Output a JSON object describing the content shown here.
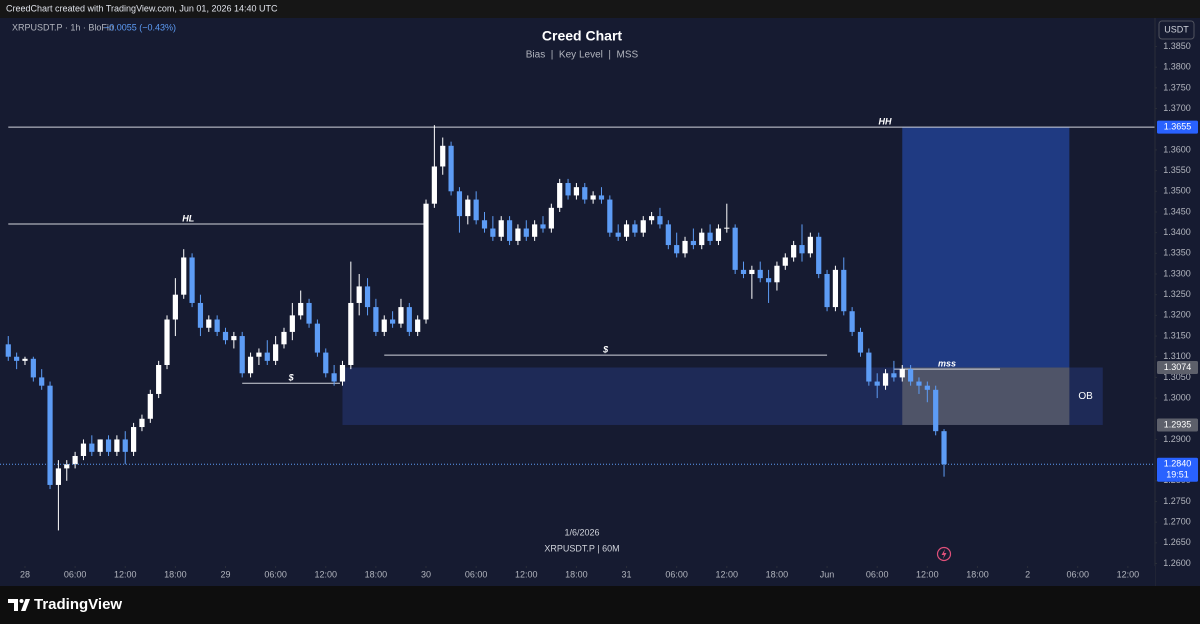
{
  "header": {
    "text": "CreedChart created with TradingView.com, Jun 01, 2026 14:40 UTC"
  },
  "brand": {
    "name": "TradingView"
  },
  "chart_data": {
    "type": "candlestick",
    "title": "Creed Chart",
    "subtitle": "Bias  |  Key Level  |  MSS",
    "symbol": "XRPUSDT.P · 1h · BloFin",
    "change": "−0.0055 (−0.43%)",
    "currency": "USDT",
    "footer_date": "1/6/2026",
    "footer_symbol": "XRPUSDT.P | 60M",
    "countdown": "19:51",
    "up_color": "#ffffff",
    "down_color": "#5d9cf5",
    "xlim": [
      -2.99,
      135.25
    ],
    "ylim": [
      1.2594,
      1.3919
    ],
    "xticks": [
      {
        "value": 0,
        "label": "28"
      },
      {
        "value": 6,
        "label": "06:00"
      },
      {
        "value": 12,
        "label": "12:00"
      },
      {
        "value": 18,
        "label": "18:00"
      },
      {
        "value": 24,
        "label": "29"
      },
      {
        "value": 30,
        "label": "06:00"
      },
      {
        "value": 36,
        "label": "12:00"
      },
      {
        "value": 42,
        "label": "18:00"
      },
      {
        "value": 48,
        "label": "30"
      },
      {
        "value": 54,
        "label": "06:00"
      },
      {
        "value": 60,
        "label": "12:00"
      },
      {
        "value": 66,
        "label": "18:00"
      },
      {
        "value": 72,
        "label": "31"
      },
      {
        "value": 78,
        "label": "06:00"
      },
      {
        "value": 84,
        "label": "12:00"
      },
      {
        "value": 90,
        "label": "18:00"
      },
      {
        "value": 96,
        "label": "Jun"
      },
      {
        "value": 102,
        "label": "06:00"
      },
      {
        "value": 108,
        "label": "12:00"
      },
      {
        "value": 114,
        "label": "18:00"
      },
      {
        "value": 120,
        "label": "2"
      },
      {
        "value": 126,
        "label": "06:00"
      },
      {
        "value": 132,
        "label": "12:00"
      }
    ],
    "yticks": [
      {
        "value": 1.26,
        "label": "1.2600"
      },
      {
        "value": 1.265,
        "label": "1.2650"
      },
      {
        "value": 1.27,
        "label": "1.2700"
      },
      {
        "value": 1.275,
        "label": "1.2750"
      },
      {
        "value": 1.28,
        "label": "1.2800"
      },
      {
        "value": 1.29,
        "label": "1.2900"
      },
      {
        "value": 1.3,
        "label": "1.3000"
      },
      {
        "value": 1.305,
        "label": "1.3050"
      },
      {
        "value": 1.31,
        "label": "1.3100"
      },
      {
        "value": 1.315,
        "label": "1.3150"
      },
      {
        "value": 1.32,
        "label": "1.3200"
      },
      {
        "value": 1.325,
        "label": "1.3250"
      },
      {
        "value": 1.33,
        "label": "1.3300"
      },
      {
        "value": 1.335,
        "label": "1.3350"
      },
      {
        "value": 1.34,
        "label": "1.3400"
      },
      {
        "value": 1.345,
        "label": "1.3450"
      },
      {
        "value": 1.35,
        "label": "1.3500"
      },
      {
        "value": 1.355,
        "label": "1.3550"
      },
      {
        "value": 1.36,
        "label": "1.3600"
      },
      {
        "value": 1.37,
        "label": "1.3700"
      },
      {
        "value": 1.375,
        "label": "1.3750"
      },
      {
        "value": 1.38,
        "label": "1.3800"
      },
      {
        "value": 1.385,
        "label": "1.3850"
      }
    ],
    "x": [
      -2,
      -1,
      0,
      1,
      2,
      3,
      4,
      5,
      6,
      7,
      8,
      9,
      10,
      11,
      12,
      13,
      14,
      15,
      16,
      17,
      18,
      19,
      20,
      21,
      22,
      23,
      24,
      25,
      26,
      27,
      28,
      29,
      30,
      31,
      32,
      33,
      34,
      35,
      36,
      37,
      38,
      39,
      40,
      41,
      42,
      43,
      44,
      45,
      46,
      47,
      48,
      49,
      50,
      51,
      52,
      53,
      54,
      55,
      56,
      57,
      58,
      59,
      60,
      61,
      62,
      63,
      64,
      65,
      66,
      67,
      68,
      69,
      70,
      71,
      72,
      73,
      74,
      75,
      76,
      77,
      78,
      79,
      80,
      81,
      82,
      83,
      84,
      85,
      86,
      87,
      88,
      89,
      90,
      91,
      92,
      93,
      94,
      95,
      96,
      97,
      98,
      99,
      100,
      101,
      102,
      103,
      104,
      105,
      106,
      107,
      108,
      109,
      110
    ],
    "ohlc": [
      [
        1.313,
        1.315,
        1.309,
        1.31
      ],
      [
        1.31,
        1.311,
        1.307,
        1.309
      ],
      [
        1.309,
        1.31,
        1.308,
        1.3095
      ],
      [
        1.3095,
        1.31,
        1.304,
        1.305
      ],
      [
        1.305,
        1.307,
        1.302,
        1.303
      ],
      [
        1.303,
        1.304,
        1.278,
        1.279
      ],
      [
        1.279,
        1.285,
        1.268,
        1.283
      ],
      [
        1.283,
        1.285,
        1.28,
        1.284
      ],
      [
        1.284,
        1.287,
        1.283,
        1.286
      ],
      [
        1.286,
        1.29,
        1.285,
        1.289
      ],
      [
        1.289,
        1.291,
        1.286,
        1.287
      ],
      [
        1.287,
        1.29,
        1.286,
        1.29
      ],
      [
        1.29,
        1.291,
        1.286,
        1.287
      ],
      [
        1.287,
        1.291,
        1.286,
        1.29
      ],
      [
        1.29,
        1.292,
        1.284,
        1.287
      ],
      [
        1.287,
        1.294,
        1.286,
        1.293
      ],
      [
        1.293,
        1.296,
        1.292,
        1.295
      ],
      [
        1.295,
        1.302,
        1.294,
        1.301
      ],
      [
        1.301,
        1.309,
        1.3,
        1.308
      ],
      [
        1.308,
        1.32,
        1.307,
        1.319
      ],
      [
        1.319,
        1.329,
        1.315,
        1.325
      ],
      [
        1.325,
        1.336,
        1.324,
        1.334
      ],
      [
        1.334,
        1.335,
        1.322,
        1.323
      ],
      [
        1.323,
        1.325,
        1.315,
        1.317
      ],
      [
        1.317,
        1.32,
        1.316,
        1.319
      ],
      [
        1.319,
        1.32,
        1.315,
        1.316
      ],
      [
        1.316,
        1.317,
        1.313,
        1.314
      ],
      [
        1.314,
        1.316,
        1.312,
        1.315
      ],
      [
        1.315,
        1.316,
        1.305,
        1.306
      ],
      [
        1.306,
        1.311,
        1.305,
        1.31
      ],
      [
        1.31,
        1.312,
        1.308,
        1.311
      ],
      [
        1.311,
        1.314,
        1.308,
        1.309
      ],
      [
        1.309,
        1.315,
        1.308,
        1.313
      ],
      [
        1.313,
        1.317,
        1.312,
        1.316
      ],
      [
        1.316,
        1.323,
        1.314,
        1.32
      ],
      [
        1.32,
        1.326,
        1.319,
        1.323
      ],
      [
        1.323,
        1.324,
        1.317,
        1.318
      ],
      [
        1.318,
        1.319,
        1.31,
        1.311
      ],
      [
        1.311,
        1.312,
        1.305,
        1.306
      ],
      [
        1.306,
        1.308,
        1.303,
        1.304
      ],
      [
        1.304,
        1.309,
        1.303,
        1.308
      ],
      [
        1.308,
        1.333,
        1.307,
        1.323
      ],
      [
        1.323,
        1.33,
        1.32,
        1.327
      ],
      [
        1.327,
        1.329,
        1.32,
        1.322
      ],
      [
        1.322,
        1.324,
        1.315,
        1.316
      ],
      [
        1.316,
        1.32,
        1.315,
        1.319
      ],
      [
        1.319,
        1.321,
        1.317,
        1.318
      ],
      [
        1.318,
        1.324,
        1.317,
        1.322
      ],
      [
        1.322,
        1.323,
        1.315,
        1.316
      ],
      [
        1.316,
        1.32,
        1.315,
        1.319
      ],
      [
        1.319,
        1.348,
        1.318,
        1.347
      ],
      [
        1.347,
        1.366,
        1.346,
        1.356
      ],
      [
        1.356,
        1.363,
        1.354,
        1.361
      ],
      [
        1.361,
        1.362,
        1.349,
        1.35
      ],
      [
        1.35,
        1.351,
        1.34,
        1.344
      ],
      [
        1.344,
        1.349,
        1.342,
        1.348
      ],
      [
        1.348,
        1.35,
        1.342,
        1.343
      ],
      [
        1.343,
        1.345,
        1.34,
        1.341
      ],
      [
        1.341,
        1.344,
        1.338,
        1.339
      ],
      [
        1.339,
        1.344,
        1.338,
        1.343
      ],
      [
        1.343,
        1.344,
        1.337,
        1.338
      ],
      [
        1.338,
        1.342,
        1.337,
        1.341
      ],
      [
        1.341,
        1.343,
        1.338,
        1.339
      ],
      [
        1.339,
        1.343,
        1.338,
        1.342
      ],
      [
        1.342,
        1.344,
        1.34,
        1.341
      ],
      [
        1.341,
        1.347,
        1.34,
        1.346
      ],
      [
        1.346,
        1.353,
        1.345,
        1.352
      ],
      [
        1.352,
        1.353,
        1.348,
        1.349
      ],
      [
        1.349,
        1.352,
        1.348,
        1.351
      ],
      [
        1.351,
        1.352,
        1.347,
        1.348
      ],
      [
        1.348,
        1.35,
        1.347,
        1.349
      ],
      [
        1.349,
        1.351,
        1.347,
        1.348
      ],
      [
        1.348,
        1.349,
        1.339,
        1.34
      ],
      [
        1.34,
        1.342,
        1.338,
        1.339
      ],
      [
        1.339,
        1.343,
        1.338,
        1.342
      ],
      [
        1.342,
        1.343,
        1.339,
        1.34
      ],
      [
        1.34,
        1.344,
        1.339,
        1.343
      ],
      [
        1.343,
        1.345,
        1.342,
        1.344
      ],
      [
        1.344,
        1.346,
        1.341,
        1.342
      ],
      [
        1.342,
        1.343,
        1.336,
        1.337
      ],
      [
        1.337,
        1.34,
        1.334,
        1.335
      ],
      [
        1.335,
        1.339,
        1.334,
        1.338
      ],
      [
        1.338,
        1.341,
        1.336,
        1.337
      ],
      [
        1.337,
        1.341,
        1.336,
        1.34
      ],
      [
        1.34,
        1.342,
        1.337,
        1.338
      ],
      [
        1.338,
        1.342,
        1.337,
        1.341
      ],
      [
        1.341,
        1.347,
        1.34,
        1.3412
      ],
      [
        1.3412,
        1.342,
        1.33,
        1.331
      ],
      [
        1.331,
        1.333,
        1.329,
        1.33
      ],
      [
        1.33,
        1.332,
        1.324,
        1.331
      ],
      [
        1.331,
        1.333,
        1.328,
        1.329
      ],
      [
        1.329,
        1.331,
        1.323,
        1.328
      ],
      [
        1.328,
        1.333,
        1.326,
        1.332
      ],
      [
        1.332,
        1.335,
        1.331,
        1.334
      ],
      [
        1.334,
        1.338,
        1.333,
        1.337
      ],
      [
        1.337,
        1.342,
        1.333,
        1.335
      ],
      [
        1.335,
        1.34,
        1.334,
        1.339
      ],
      [
        1.339,
        1.34,
        1.329,
        1.33
      ],
      [
        1.33,
        1.331,
        1.321,
        1.322
      ],
      [
        1.322,
        1.332,
        1.321,
        1.331
      ],
      [
        1.331,
        1.334,
        1.32,
        1.321
      ],
      [
        1.321,
        1.322,
        1.315,
        1.316
      ],
      [
        1.316,
        1.317,
        1.31,
        1.311
      ],
      [
        1.311,
        1.312,
        1.303,
        1.304
      ],
      [
        1.304,
        1.306,
        1.3,
        1.303
      ],
      [
        1.303,
        1.307,
        1.302,
        1.306
      ],
      [
        1.306,
        1.309,
        1.304,
        1.305
      ],
      [
        1.305,
        1.308,
        1.304,
        1.307
      ],
      [
        1.307,
        1.308,
        1.303,
        1.304
      ],
      [
        1.304,
        1.305,
        1.301,
        1.303
      ],
      [
        1.303,
        1.304,
        1.299,
        1.302
      ],
      [
        1.302,
        1.303,
        1.291,
        1.292
      ],
      [
        1.292,
        1.2925,
        1.281,
        1.284
      ]
    ],
    "zones": [
      {
        "from": 1.2935,
        "to": 1.3074,
        "x": [
          38,
          129
        ],
        "color": "#1e2a57",
        "label": "OB"
      },
      {
        "from": 1.3074,
        "to": 1.3655,
        "x": [
          105,
          125
        ],
        "color": "#1f3a82"
      },
      {
        "from": 1.2935,
        "to": 1.3074,
        "x": [
          105,
          125
        ],
        "color": "#4f5468"
      }
    ],
    "levels": [
      {
        "label": "HH",
        "value": 1.3655,
        "x": [
          -2,
          135.25
        ]
      },
      {
        "label": "HL",
        "value": 1.3421,
        "x": [
          -2,
          48
        ]
      },
      {
        "label": "$",
        "value": 1.3104,
        "x": [
          43,
          96
        ]
      },
      {
        "label": "$",
        "value": 1.3036,
        "x": [
          26,
          37.7
        ]
      },
      {
        "label": "mss",
        "value": 1.307,
        "x": [
          104,
          116.7
        ]
      }
    ],
    "price_tags": [
      {
        "value": 1.3655,
        "label": "1.3655",
        "color": "#2962ff"
      },
      {
        "value": 1.3074,
        "label": "1.3074",
        "color": "#5d606b"
      },
      {
        "value": 1.2935,
        "label": "1.2935",
        "color": "#5d606b"
      },
      {
        "value": 1.284,
        "label": "1.2840",
        "color": "#2962ff"
      }
    ],
    "last_price_line_color": "#5d9cf5"
  }
}
